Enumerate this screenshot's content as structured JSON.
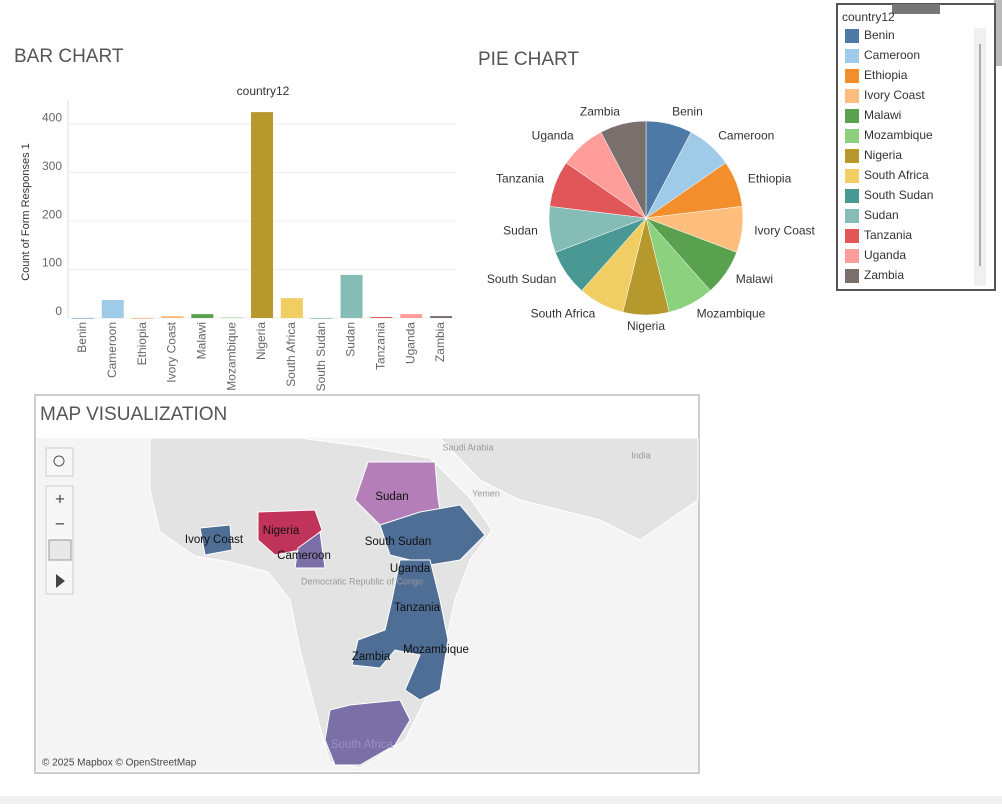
{
  "chart_data": [
    {
      "type": "bar",
      "title": "BAR CHART",
      "subtitle": "country12",
      "y_label": "Count of Form Responses 1",
      "categories": [
        "Benin",
        "Cameroon",
        "Ethiopia",
        "Ivory Coast",
        "Malawi",
        "Mozambique",
        "Nigeria",
        "South Africa",
        "South Sudan",
        "Sudan",
        "Tanzania",
        "Uganda",
        "Zambia"
      ],
      "values": [
        0,
        37,
        0,
        4,
        8,
        1,
        425,
        41,
        0,
        89,
        2,
        8,
        4
      ],
      "colors": [
        "#4e79a7",
        "#a0cbe8",
        "#f28e2b",
        "#ffbe7d",
        "#59a14f",
        "#8cd17d",
        "#b6992d",
        "#f1ce63",
        "#499894",
        "#86bcb6",
        "#e15759",
        "#ff9d9a",
        "#79706e"
      ],
      "ylim": [
        0,
        450
      ],
      "yticks": [
        0,
        100,
        200,
        300,
        400
      ],
      "grid": true
    },
    {
      "type": "pie",
      "title": "PIE CHART",
      "categories": [
        "Benin",
        "Cameroon",
        "Ethiopia",
        "Ivory Coast",
        "Malawi",
        "Mozambique",
        "Nigeria",
        "South Africa",
        "South Sudan",
        "Sudan",
        "Tanzania",
        "Uganda",
        "Zambia"
      ],
      "values": [
        1,
        1,
        1,
        1,
        1,
        1,
        1,
        1,
        1,
        1,
        1,
        1,
        1
      ],
      "colors": [
        "#4e79a7",
        "#a0cbe8",
        "#f28e2b",
        "#ffbe7d",
        "#59a14f",
        "#8cd17d",
        "#b6992d",
        "#f1ce63",
        "#499894",
        "#86bcb6",
        "#e15759",
        "#ff9d9a",
        "#79706e"
      ]
    }
  ],
  "legend": {
    "title": "country12"
  },
  "map": {
    "title": "MAP VISUALIZATION",
    "labels": [
      "Sudan",
      "Nigeria",
      "Ivory Coast",
      "Cameroon",
      "South Sudan",
      "Uganda",
      "Tanzania",
      "Zambia",
      "Mozambique",
      "South Africa"
    ],
    "background_labels": [
      "Saudi Arabia",
      "Yemen",
      "India",
      "Democratic Republic of Congo"
    ],
    "attribution": "© 2025 Mapbox © OpenStreetMap"
  }
}
